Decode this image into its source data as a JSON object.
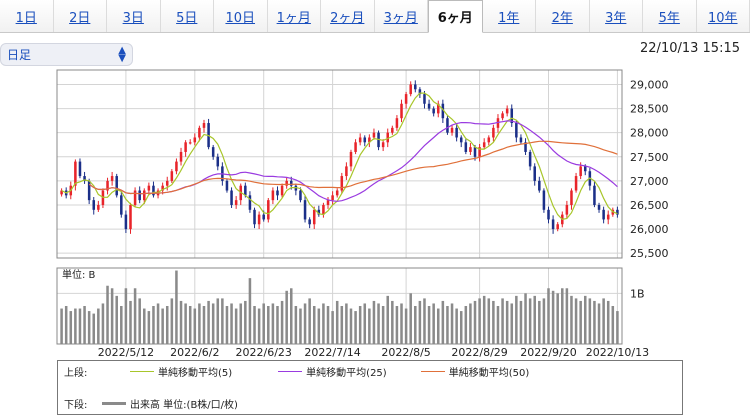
{
  "tabs": [
    {
      "label": "1日",
      "active": false
    },
    {
      "label": "2日",
      "active": false
    },
    {
      "label": "3日",
      "active": false
    },
    {
      "label": "5日",
      "active": false
    },
    {
      "label": "10日",
      "active": false
    },
    {
      "label": "1ヶ月",
      "active": false
    },
    {
      "label": "2ヶ月",
      "active": false
    },
    {
      "label": "3ヶ月",
      "active": false
    },
    {
      "label": "6ヶ月",
      "active": true
    },
    {
      "label": "1年",
      "active": false
    },
    {
      "label": "2年",
      "active": false
    },
    {
      "label": "3年",
      "active": false
    },
    {
      "label": "5年",
      "active": false
    },
    {
      "label": "10年",
      "active": false
    }
  ],
  "interval_select": {
    "value": "日足",
    "icon": "chevron-up-down-icon"
  },
  "timestamp": "22/10/13 15:15",
  "volume_unit_label": "単位: B",
  "volume_tick_label": "1B",
  "legend": {
    "upper_label": "上段:",
    "lower_label": "下段:",
    "ma5_label": "単純移動平均(5)",
    "ma25_label": "単純移動平均(25)",
    "ma50_label": "単純移動平均(50)",
    "volume_label": "出来高 単位:(B株/口/枚)"
  },
  "colors": {
    "up": "#e8242a",
    "down": "#1b2f88",
    "ma5": "#a8c62b",
    "ma25": "#9a3be0",
    "ma50": "#e0703a",
    "volume": "#8a8a8a"
  },
  "chart_data": {
    "type": "candlestick",
    "price_axis": {
      "ticks": [
        25500,
        26000,
        26500,
        27000,
        27500,
        28000,
        28500,
        29000
      ],
      "ylim": [
        25400,
        29300
      ]
    },
    "date_labels": [
      "2022/5/12",
      "2022/6/2",
      "2022/6/23",
      "2022/7/14",
      "2022/8/5",
      "2022/8/29",
      "2022/9/20",
      "2022/10/13"
    ],
    "date_label_index": [
      14,
      29,
      44,
      59,
      75,
      91,
      106,
      121
    ],
    "dates_note": "",
    "close": [
      26800,
      26700,
      26900,
      27400,
      27100,
      27000,
      26600,
      26400,
      26500,
      26800,
      27000,
      27100,
      26700,
      26300,
      26000,
      26500,
      26800,
      26600,
      26800,
      26900,
      26700,
      26800,
      26900,
      27000,
      27200,
      27400,
      27600,
      27800,
      27800,
      27900,
      28100,
      28200,
      27700,
      27500,
      27300,
      27000,
      26800,
      26500,
      26600,
      26900,
      26700,
      26400,
      26100,
      26300,
      26200,
      26600,
      26800,
      26700,
      26900,
      27000,
      26900,
      26800,
      26600,
      26200,
      26100,
      26400,
      26300,
      26500,
      26600,
      26700,
      26800,
      27100,
      27300,
      27600,
      27800,
      27900,
      27800,
      27900,
      28000,
      27700,
      27800,
      28000,
      28100,
      28300,
      28600,
      28800,
      29000,
      28900,
      28800,
      28600,
      28500,
      28400,
      28600,
      28300,
      28000,
      28100,
      27900,
      27800,
      27600,
      27700,
      27500,
      27700,
      27800,
      27900,
      28100,
      28300,
      28400,
      28500,
      28200,
      27900,
      27800,
      27600,
      27300,
      27000,
      26800,
      26400,
      26200,
      26000,
      26100,
      26300,
      26500,
      26800,
      27100,
      27300,
      27200,
      26900,
      26500,
      26400,
      26200,
      26300,
      26400,
      26300
    ],
    "volume": [
      0.7,
      0.75,
      0.65,
      0.7,
      0.7,
      0.75,
      0.65,
      0.6,
      0.7,
      0.8,
      1.15,
      1.1,
      0.95,
      0.75,
      1.1,
      0.85,
      1.1,
      0.9,
      0.7,
      0.65,
      0.75,
      0.8,
      0.7,
      0.75,
      0.9,
      1.45,
      0.85,
      0.8,
      0.75,
      0.7,
      0.8,
      0.75,
      0.85,
      0.8,
      0.9,
      0.9,
      0.75,
      0.8,
      0.7,
      0.8,
      0.85,
      1.3,
      0.75,
      0.7,
      0.8,
      0.75,
      0.8,
      0.75,
      0.85,
      1.05,
      1.1,
      0.75,
      0.7,
      0.8,
      0.9,
      0.75,
      0.7,
      0.8,
      0.75,
      0.65,
      0.85,
      0.75,
      0.8,
      0.7,
      0.65,
      0.75,
      0.8,
      0.7,
      0.85,
      0.8,
      0.75,
      0.95,
      0.85,
      0.75,
      0.8,
      0.7,
      1.0,
      0.75,
      0.85,
      0.9,
      0.75,
      0.8,
      0.7,
      0.85,
      0.75,
      0.8,
      0.7,
      0.65,
      0.75,
      0.8,
      0.85,
      0.9,
      0.95,
      0.9,
      0.85,
      0.75,
      0.9,
      0.85,
      0.8,
      0.95,
      0.85,
      1.0,
      0.9,
      0.95,
      0.85,
      0.9,
      1.1,
      1.05,
      1.0,
      1.1,
      1.1,
      0.95,
      0.9,
      0.85,
      0.95,
      0.9,
      0.85,
      0.8,
      0.9,
      0.85,
      0.75,
      0.65
    ],
    "volume_ylim": [
      0,
      1.5
    ],
    "series": [
      {
        "name": "単純移動平均(5)",
        "period": 5
      },
      {
        "name": "単純移動平均(25)",
        "period": 25
      },
      {
        "name": "単純移動平均(50)",
        "period": 50
      }
    ],
    "grid": true
  }
}
